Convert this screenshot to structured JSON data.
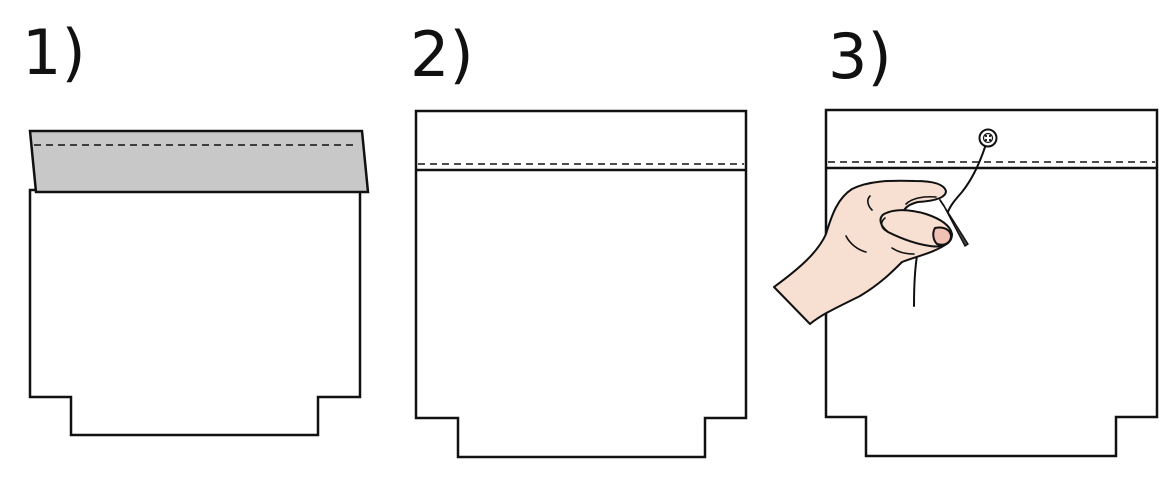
{
  "steps": [
    {
      "label": "1)"
    },
    {
      "label": "2)"
    },
    {
      "label": "3)"
    }
  ],
  "colors": {
    "outline": "#111111",
    "fold_band": "#c8c8c8",
    "paper": "#ffffff",
    "skin": "#f7dfd2",
    "nail": "#efc0b4",
    "background": "#ffffff"
  },
  "icons": {
    "hand": "hand-holding-needle-icon",
    "button": "button-icon",
    "needle": "needle-icon"
  }
}
